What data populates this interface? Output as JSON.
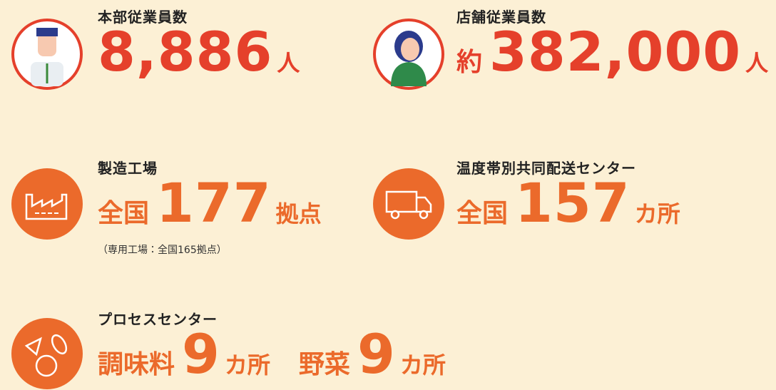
{
  "items": [
    {
      "title": "本部従業員数",
      "value": "8,886",
      "unit": "人"
    },
    {
      "title": "店舗従業員数",
      "prefix": "約",
      "value": "382,000",
      "unit": "人"
    },
    {
      "title": "製造工場",
      "prefix": "全国",
      "value": "177",
      "unit": "拠点",
      "note": "（専用工場：全国165拠点）"
    },
    {
      "title": "温度帯別共同配送センター",
      "prefix": "全国",
      "value": "157",
      "unit": "カ所"
    },
    {
      "title": "プロセスセンター",
      "parts": [
        {
          "prefix": "調味料",
          "value": "9",
          "unit": "カ所"
        },
        {
          "prefix": "野菜",
          "value": "9",
          "unit": "カ所"
        }
      ]
    }
  ]
}
